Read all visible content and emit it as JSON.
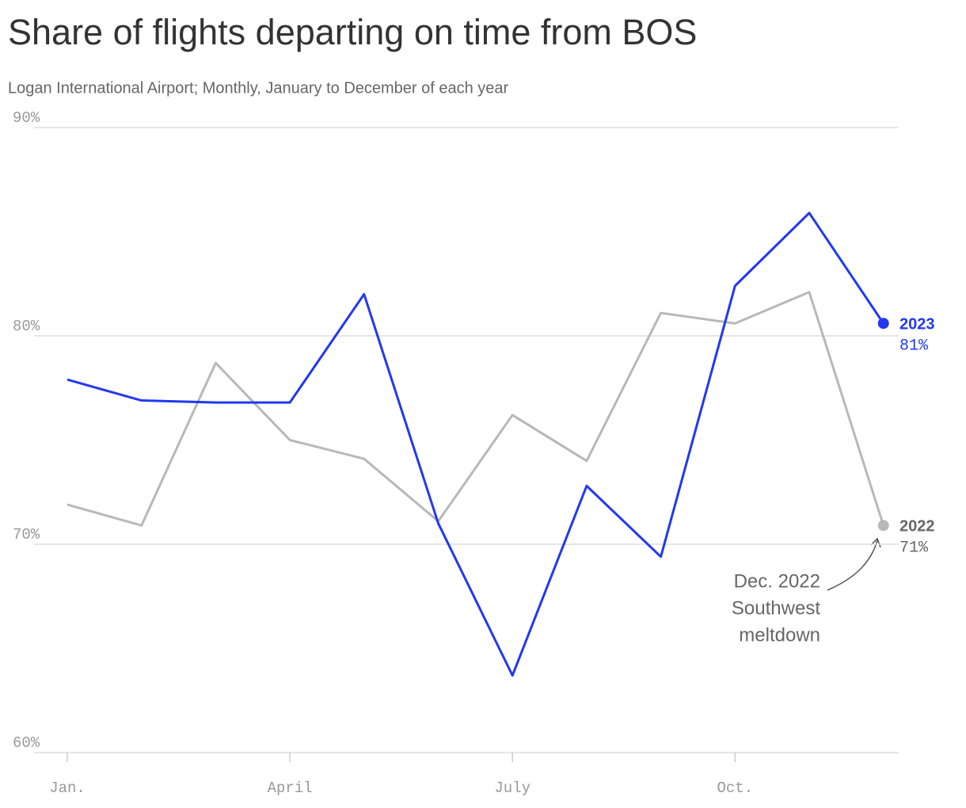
{
  "chart_data": {
    "type": "line",
    "title": "Share of flights departing on time from BOS",
    "subtitle": "Logan International Airport; Monthly, January to December of each year",
    "categories": [
      "Jan.",
      null,
      null,
      "April",
      null,
      null,
      "July",
      null,
      null,
      "Oct.",
      null,
      null
    ],
    "series": [
      {
        "name": "2022",
        "color": "#b8b8b8",
        "label_color": "#666666",
        "values": [
          71.9,
          70.9,
          78.7,
          75.0,
          74.1,
          71.1,
          76.2,
          74.0,
          81.1,
          80.6,
          82.1,
          70.9
        ],
        "value_labels": [
          null,
          null,
          null,
          null,
          null,
          null,
          null,
          null,
          null,
          null,
          null,
          "71%"
        ]
      },
      {
        "name": "2023",
        "color": "#2139f0",
        "label_color": "#2139f0",
        "values": [
          77.9,
          76.9,
          76.8,
          76.8,
          82.0,
          71.0,
          63.7,
          72.8,
          69.4,
          82.4,
          85.9,
          80.6
        ],
        "value_labels": [
          null,
          null,
          null,
          null,
          null,
          null,
          null,
          null,
          null,
          null,
          null,
          "81%"
        ]
      }
    ],
    "ylim": [
      60,
      90
    ],
    "yticks": [
      {
        "value": 60,
        "label": "60%"
      },
      {
        "value": 70,
        "label": "70%"
      },
      {
        "value": 80,
        "label": "80%"
      },
      {
        "value": 90,
        "label": "90%"
      }
    ],
    "grid": true,
    "annotation": {
      "lines": [
        "Dec. 2022",
        "Southwest",
        "meltdown"
      ]
    }
  }
}
